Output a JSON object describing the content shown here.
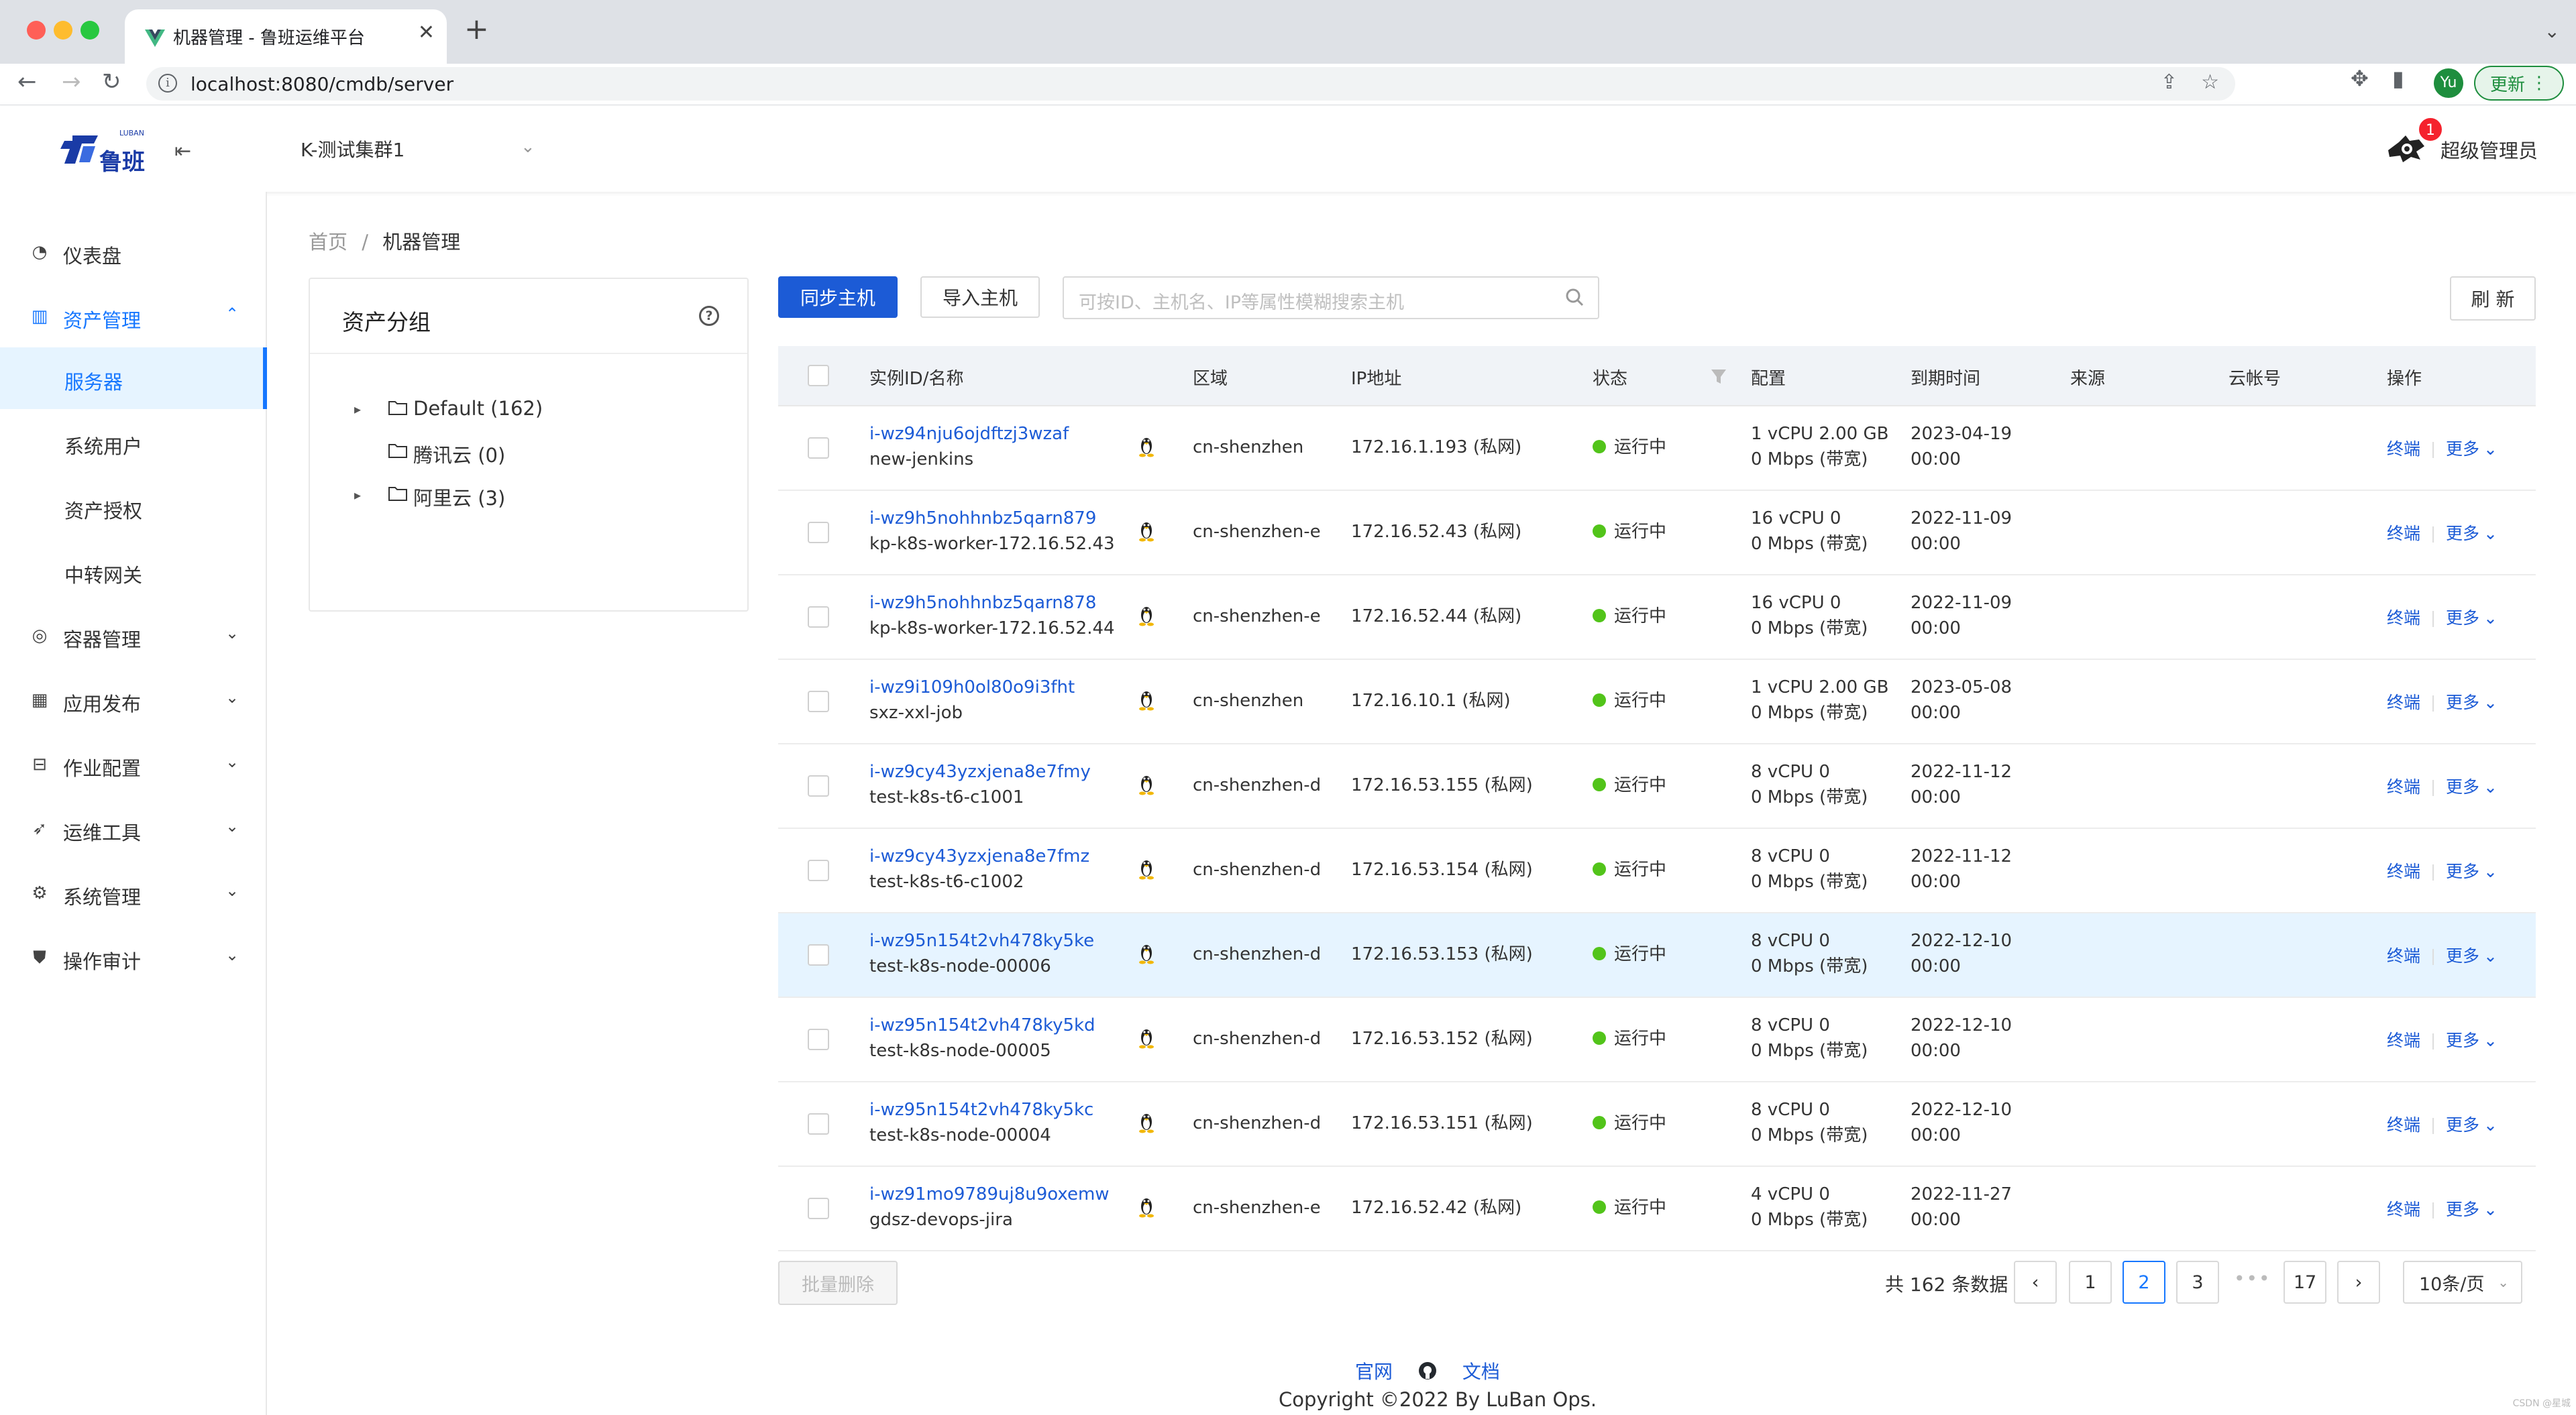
{
  "browser": {
    "tab_title": "机器管理 - 鲁班运维平台",
    "url": "localhost:8080/cmdb/server",
    "profile_initial": "Yu",
    "update_label": "更新"
  },
  "header": {
    "logo_text": "鲁班",
    "logo_small": "LUBAN",
    "cluster": "K-测试集群1",
    "notification_count": "1",
    "user_name": "超级管理员"
  },
  "sidebar": {
    "items": [
      {
        "label": "仪表盘",
        "icon": "dashboard-icon"
      },
      {
        "label": "资产管理",
        "icon": "bar-chart-icon"
      },
      {
        "label": "容器管理",
        "icon": "container-icon"
      },
      {
        "label": "应用发布",
        "icon": "app-icon"
      },
      {
        "label": "作业配置",
        "icon": "job-icon"
      },
      {
        "label": "运维工具",
        "icon": "rocket-icon"
      },
      {
        "label": "系统管理",
        "icon": "gear-icon"
      },
      {
        "label": "操作审计",
        "icon": "shield-icon"
      }
    ],
    "subitems": [
      "服务器",
      "系统用户",
      "资产授权",
      "中转网关"
    ]
  },
  "breadcrumb": {
    "home": "首页",
    "sep": "/",
    "current": "机器管理"
  },
  "groups": {
    "title": "资产分组",
    "help": "?",
    "tree": [
      {
        "label": "Default (162)"
      },
      {
        "label": "腾讯云 (0)"
      },
      {
        "label": "阿里云 (3)"
      }
    ]
  },
  "toolbar": {
    "sync_label": "同步主机",
    "import_label": "导入主机",
    "search_placeholder": "可按ID、主机名、IP等属性模糊搜索主机",
    "refresh_label": "刷 新"
  },
  "table": {
    "columns": [
      "实例ID/名称",
      "区域",
      "IP地址",
      "状态",
      "配置",
      "到期时间",
      "来源",
      "云帐号",
      "操作"
    ],
    "op_terminal": "终端",
    "op_more": "更多",
    "rows": [
      {
        "id": "i-wz94nju6ojdftzj3wzaf",
        "name": "new-jenkins",
        "region": "cn-shenzhen",
        "ip": "172.16.1.193 (私网)",
        "status": "运行中",
        "cfg1": "1 vCPU 2.00 GB",
        "cfg2": "0 Mbps (带宽)",
        "exp1": "2023-04-19",
        "exp2": "00:00"
      },
      {
        "id": "i-wz9h5nohhnbz5qarn879",
        "name": "kp-k8s-worker-172.16.52.43",
        "region": "cn-shenzhen-e",
        "ip": "172.16.52.43 (私网)",
        "status": "运行中",
        "cfg1": "16 vCPU 0",
        "cfg2": "0 Mbps (带宽)",
        "exp1": "2022-11-09",
        "exp2": "00:00"
      },
      {
        "id": "i-wz9h5nohhnbz5qarn878",
        "name": "kp-k8s-worker-172.16.52.44",
        "region": "cn-shenzhen-e",
        "ip": "172.16.52.44 (私网)",
        "status": "运行中",
        "cfg1": "16 vCPU 0",
        "cfg2": "0 Mbps (带宽)",
        "exp1": "2022-11-09",
        "exp2": "00:00"
      },
      {
        "id": "i-wz9i109h0ol80o9i3fht",
        "name": "sxz-xxl-job",
        "region": "cn-shenzhen",
        "ip": "172.16.10.1 (私网)",
        "status": "运行中",
        "cfg1": "1 vCPU 2.00 GB",
        "cfg2": "0 Mbps (带宽)",
        "exp1": "2023-05-08",
        "exp2": "00:00"
      },
      {
        "id": "i-wz9cy43yzxjena8e7fmy",
        "name": "test-k8s-t6-c1001",
        "region": "cn-shenzhen-d",
        "ip": "172.16.53.155 (私网)",
        "status": "运行中",
        "cfg1": "8 vCPU 0",
        "cfg2": "0 Mbps (带宽)",
        "exp1": "2022-11-12",
        "exp2": "00:00"
      },
      {
        "id": "i-wz9cy43yzxjena8e7fmz",
        "name": "test-k8s-t6-c1002",
        "region": "cn-shenzhen-d",
        "ip": "172.16.53.154 (私网)",
        "status": "运行中",
        "cfg1": "8 vCPU 0",
        "cfg2": "0 Mbps (带宽)",
        "exp1": "2022-11-12",
        "exp2": "00:00"
      },
      {
        "id": "i-wz95n154t2vh478ky5ke",
        "name": "test-k8s-node-00006",
        "region": "cn-shenzhen-d",
        "ip": "172.16.53.153 (私网)",
        "status": "运行中",
        "cfg1": "8 vCPU 0",
        "cfg2": "0 Mbps (带宽)",
        "exp1": "2022-12-10",
        "exp2": "00:00"
      },
      {
        "id": "i-wz95n154t2vh478ky5kd",
        "name": "test-k8s-node-00005",
        "region": "cn-shenzhen-d",
        "ip": "172.16.53.152 (私网)",
        "status": "运行中",
        "cfg1": "8 vCPU 0",
        "cfg2": "0 Mbps (带宽)",
        "exp1": "2022-12-10",
        "exp2": "00:00"
      },
      {
        "id": "i-wz95n154t2vh478ky5kc",
        "name": "test-k8s-node-00004",
        "region": "cn-shenzhen-d",
        "ip": "172.16.53.151 (私网)",
        "status": "运行中",
        "cfg1": "8 vCPU 0",
        "cfg2": "0 Mbps (带宽)",
        "exp1": "2022-12-10",
        "exp2": "00:00"
      },
      {
        "id": "i-wz91mo9789uj8u9oxemw",
        "name": "gdsz-devops-jira",
        "region": "cn-shenzhen-e",
        "ip": "172.16.52.42 (私网)",
        "status": "运行中",
        "cfg1": "4 vCPU 0",
        "cfg2": "0 Mbps (带宽)",
        "exp1": "2022-11-27",
        "exp2": "00:00"
      }
    ]
  },
  "footer": {
    "bulk_delete": "批量删除",
    "total": "共 162 条数据",
    "pages": [
      "1",
      "2",
      "3",
      "17"
    ],
    "current_page": "2",
    "ellipsis": "•••",
    "page_size": "10条/页",
    "link_site": "官网",
    "link_docs": "文档",
    "copyright": "Copyright ©2022 By LuBan Ops.",
    "watermark": "CSDN @星城"
  },
  "colors": {
    "primary": "#1c5bd6",
    "running": "#52c41a",
    "badge": "#f5222d"
  }
}
